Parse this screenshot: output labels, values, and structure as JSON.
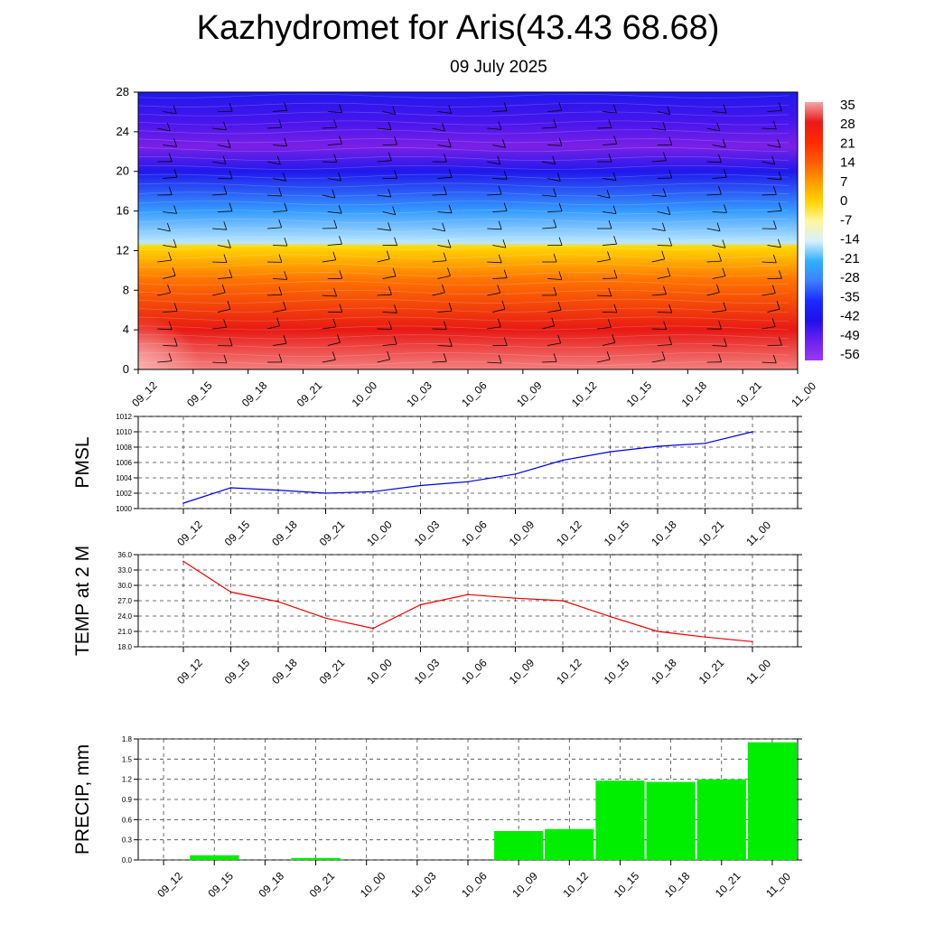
{
  "title": "Kazhydromet for Aris(43.43 68.68)",
  "subtitle": "09 July 2025",
  "time_labels": [
    "09_12",
    "09_15",
    "09_18",
    "09_21",
    "10_00",
    "10_03",
    "10_06",
    "10_09",
    "10_12",
    "10_15",
    "10_18",
    "10_21",
    "11_00"
  ],
  "chart_data": [
    {
      "type": "heatmap",
      "ylim": [
        0,
        28
      ],
      "yticks": [
        "0",
        "4",
        "8",
        "12",
        "16",
        "20",
        "24",
        "28"
      ],
      "colorbar": {
        "labels": [
          "35",
          "28",
          "21",
          "14",
          "7",
          "0",
          "-7",
          "-14",
          "-21",
          "-28",
          "-35",
          "-42",
          "-49",
          "-56"
        ],
        "colors": [
          "#f6a6a6",
          "#e81a1a",
          "#ff2a00",
          "#ff5a00",
          "#ff9a00",
          "#ffd400",
          "#fff7a0",
          "#d8f0ff",
          "#2fb0ff",
          "#3c80ff",
          "#1a2aff",
          "#2010e8",
          "#6a20f0",
          "#9a3af0"
        ]
      },
      "vertical_profile": [
        {
          "y": 0,
          "value": 33
        },
        {
          "y": 4,
          "value": 24
        },
        {
          "y": 9,
          "value": 10
        },
        {
          "y": 12.4,
          "value": -2
        },
        {
          "y": 12.8,
          "value": -16
        },
        {
          "y": 16,
          "value": -30
        },
        {
          "y": 20,
          "value": -45
        },
        {
          "y": 22.5,
          "value": -58
        },
        {
          "y": 25,
          "value": -50
        },
        {
          "y": 28,
          "value": -45
        }
      ]
    },
    {
      "type": "line",
      "ylabel": "PMSL",
      "ylim": [
        1000,
        1012
      ],
      "yticks": [
        "1000",
        "1002",
        "1004",
        "1006",
        "1008",
        "1010",
        "1012"
      ],
      "color": "#0000dd",
      "values": [
        1000.7,
        1002.7,
        1002.4,
        1002.0,
        1002.2,
        1003.0,
        1003.5,
        1004.5,
        1006.3,
        1007.4,
        1008.1,
        1008.5,
        1010.0
      ]
    },
    {
      "type": "line",
      "ylabel": "TEMP at 2 M",
      "ylim": [
        18,
        36
      ],
      "yticks": [
        "18.0",
        "21.0",
        "24.0",
        "27.0",
        "30.0",
        "33.0",
        "36.0"
      ],
      "color": "#ee0000",
      "values": [
        34.7,
        28.7,
        26.8,
        23.6,
        21.6,
        26.2,
        28.2,
        27.5,
        27.0,
        23.9,
        21.0,
        19.9,
        19.0
      ]
    },
    {
      "type": "bar",
      "ylabel": "PRECIP, mm",
      "ylim": [
        0,
        1.8
      ],
      "yticks": [
        "0.0",
        "0.3",
        "0.6",
        "0.9",
        "1.2",
        "1.5",
        "1.8"
      ],
      "color": "#00ee00",
      "values": [
        0.0,
        0.07,
        0.0,
        0.03,
        0.0,
        0.0,
        0.0,
        0.43,
        0.46,
        1.18,
        1.16,
        1.2,
        1.75
      ]
    }
  ]
}
